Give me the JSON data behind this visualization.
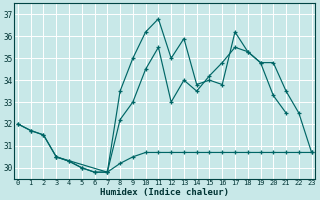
{
  "xlabel": "Humidex (Indice chaleur)",
  "background_color": "#c8e8e8",
  "line_color": "#006666",
  "grid_color": "#ffffff",
  "xlim_min": -0.3,
  "xlim_max": 23.3,
  "ylim_min": 29.5,
  "ylim_max": 37.5,
  "yticks": [
    30,
    31,
    32,
    33,
    34,
    35,
    36,
    37
  ],
  "xticks": [
    0,
    1,
    2,
    3,
    4,
    5,
    6,
    7,
    8,
    9,
    10,
    11,
    12,
    13,
    14,
    15,
    16,
    17,
    18,
    19,
    20,
    21,
    22,
    23
  ],
  "series": [
    {
      "x": [
        0,
        1,
        2,
        3,
        7,
        8,
        9,
        10,
        11,
        12,
        13,
        14,
        15,
        16,
        17,
        18,
        19,
        20,
        21
      ],
      "y": [
        32,
        31.7,
        31.5,
        30.5,
        29.8,
        33.5,
        35.0,
        36.2,
        36.8,
        35.0,
        35.9,
        33.8,
        34.0,
        33.8,
        36.2,
        35.3,
        34.8,
        33.3,
        32.5
      ]
    },
    {
      "x": [
        0,
        1,
        2,
        3,
        4,
        5,
        6,
        7,
        8,
        9,
        10,
        11,
        12,
        13,
        14,
        15,
        16,
        17,
        18,
        19,
        20,
        21,
        22,
        23
      ],
      "y": [
        32,
        31.7,
        31.5,
        30.5,
        30.3,
        30.0,
        29.8,
        29.8,
        32.2,
        33.0,
        34.5,
        35.5,
        33.0,
        34.0,
        33.5,
        34.2,
        34.8,
        35.5,
        35.3,
        34.8,
        34.8,
        33.5,
        32.5,
        30.7
      ]
    },
    {
      "x": [
        3,
        4,
        5,
        6,
        7,
        8,
        9,
        10,
        11,
        12,
        13,
        14,
        15,
        16,
        17,
        18,
        19,
        20,
        21,
        22,
        23
      ],
      "y": [
        30.5,
        30.3,
        30.0,
        29.8,
        29.8,
        30.2,
        30.5,
        30.7,
        30.7,
        30.7,
        30.7,
        30.7,
        30.7,
        30.7,
        30.7,
        30.7,
        30.7,
        30.7,
        30.7,
        30.7,
        30.7
      ]
    }
  ]
}
